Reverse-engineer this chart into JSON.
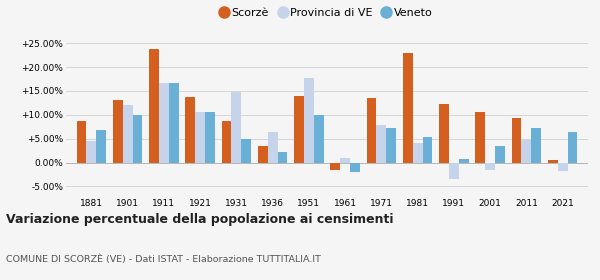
{
  "years": [
    1881,
    1901,
    1911,
    1921,
    1931,
    1936,
    1951,
    1961,
    1971,
    1981,
    1991,
    2001,
    2011,
    2021
  ],
  "scorze": [
    8.7,
    13.0,
    23.8,
    13.8,
    8.8,
    3.5,
    14.0,
    -1.5,
    13.5,
    22.9,
    12.3,
    10.6,
    9.4,
    0.5
  ],
  "provincia_ve": [
    4.5,
    12.0,
    16.7,
    10.5,
    14.8,
    6.3,
    17.7,
    1.0,
    7.8,
    4.0,
    -3.5,
    -1.5,
    4.8,
    -1.8
  ],
  "veneto": [
    6.8,
    10.0,
    16.7,
    10.5,
    5.0,
    2.2,
    10.0,
    -2.0,
    7.2,
    5.4,
    0.8,
    3.5,
    7.2,
    6.5
  ],
  "color_scorze": "#d45f1e",
  "color_provincia": "#c5d4ea",
  "color_veneto": "#6aafd6",
  "ylim": [
    -7,
    27
  ],
  "yticks": [
    -5,
    0,
    5,
    10,
    15,
    20,
    25
  ],
  "ytick_labels": [
    "-5.00%",
    "0.00%",
    "+5.00%",
    "+10.00%",
    "+15.00%",
    "+20.00%",
    "+25.00%"
  ],
  "title": "Variazione percentuale della popolazione ai censimenti",
  "subtitle": "COMUNE DI SCORZÈ (VE) - Dati ISTAT - Elaborazione TUTTITALIA.IT",
  "legend_labels": [
    "Scorzè",
    "Provincia di VE",
    "Veneto"
  ],
  "bar_width": 0.27,
  "background_color": "#f5f5f5"
}
